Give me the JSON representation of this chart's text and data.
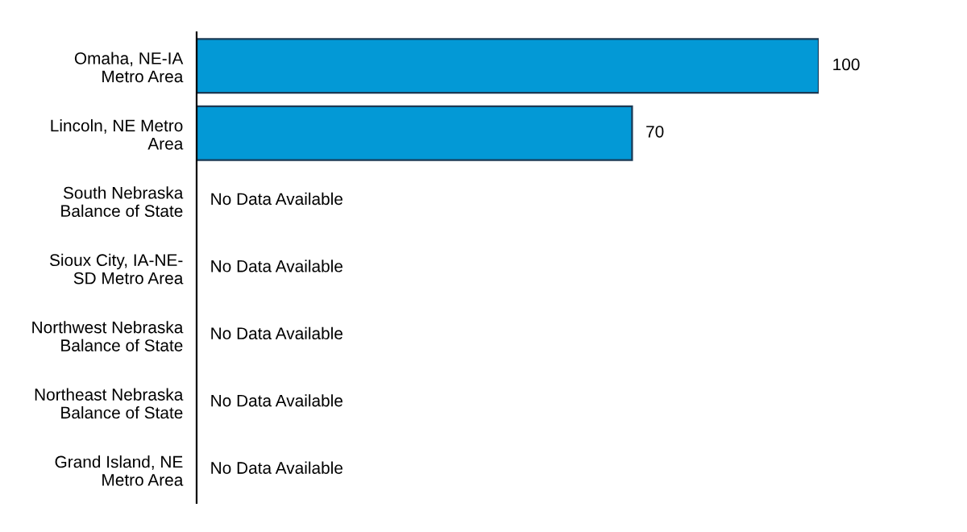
{
  "chart_data": {
    "type": "bar",
    "orientation": "horizontal",
    "categories": [
      "Omaha, NE-IA\nMetro Area",
      "Lincoln, NE Metro\nArea",
      "South Nebraska\nBalance of State",
      "Sioux City, IA-NE-\nSD Metro Area",
      "Northwest Nebraska\nBalance of State",
      "Northeast Nebraska\nBalance of State",
      "Grand Island, NE\nMetro Area"
    ],
    "values": [
      100,
      70,
      null,
      null,
      null,
      null,
      null
    ],
    "value_labels": [
      "100",
      "70",
      "No Data Available",
      "No Data Available",
      "No Data Available",
      "No Data Available",
      "No Data Available"
    ],
    "color": "#0399d6",
    "grid": false,
    "legend": false
  }
}
